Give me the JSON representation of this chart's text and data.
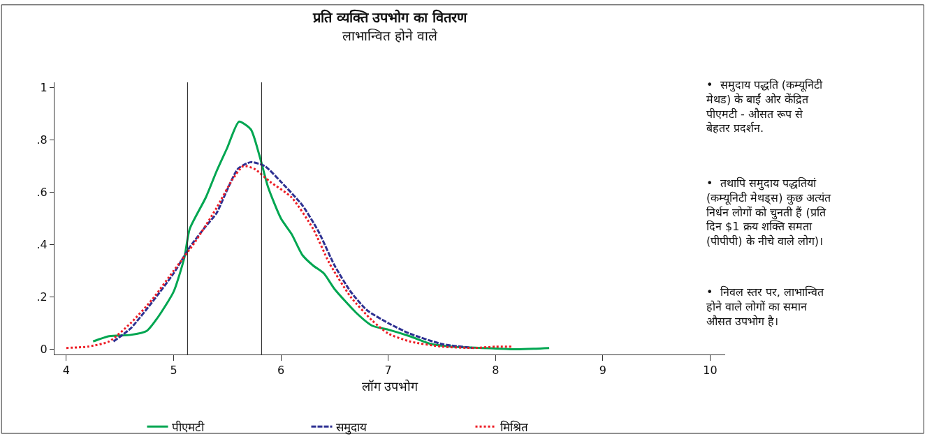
{
  "chart_data": {
    "type": "line",
    "title": "प्रति व्यक्ति उपभोग का वितरण",
    "subtitle": "लाभान्वित होने वाले",
    "xlabel": "लॉग उपभोग",
    "xlim": [
      3.89,
      10.14
    ],
    "xticks": [
      4,
      5,
      6,
      7,
      8,
      9,
      10
    ],
    "ylim": [
      -0.02,
      1.02
    ],
    "yticks": [
      0,
      {
        "value": 0.2,
        "label": ".2"
      },
      {
        "value": 0.4,
        "label": ".4"
      },
      {
        "value": 0.6,
        "label": ".6"
      },
      {
        "value": 0.8,
        "label": ".8"
      },
      1
    ],
    "grid": false,
    "legend": "bottom",
    "ref_lines": [
      {
        "axis": "x",
        "value": 5.13,
        "color": "#333333"
      },
      {
        "axis": "x",
        "value": 5.82,
        "color": "#333333"
      }
    ],
    "series": [
      {
        "name": "पीएमटी",
        "color": "#00a651",
        "line_style": "solid",
        "x": [
          4.25,
          4.4,
          4.6,
          4.75,
          4.85,
          5.0,
          5.1,
          5.15,
          5.3,
          5.4,
          5.5,
          5.61,
          5.72,
          5.8,
          5.88,
          6.0,
          6.1,
          6.2,
          6.3,
          6.4,
          6.5,
          6.7,
          6.85,
          7.0,
          7.2,
          7.4,
          7.6,
          8.0,
          8.2,
          8.5
        ],
        "values": [
          0.03,
          0.05,
          0.055,
          0.07,
          0.12,
          0.22,
          0.35,
          0.46,
          0.58,
          0.68,
          0.77,
          0.87,
          0.84,
          0.74,
          0.62,
          0.5,
          0.44,
          0.36,
          0.32,
          0.29,
          0.23,
          0.14,
          0.09,
          0.075,
          0.05,
          0.02,
          0.01,
          0.003,
          0.0,
          0.005
        ]
      },
      {
        "name": "समुदाय",
        "color": "#2e3192",
        "line_style": "dashed",
        "x": [
          4.44,
          4.6,
          4.8,
          5.0,
          5.15,
          5.3,
          5.4,
          5.5,
          5.6,
          5.72,
          5.85,
          6.0,
          6.2,
          6.35,
          6.5,
          6.65,
          6.8,
          7.0,
          7.2,
          7.5,
          7.8
        ],
        "values": [
          0.03,
          0.08,
          0.18,
          0.29,
          0.39,
          0.47,
          0.52,
          0.61,
          0.69,
          0.715,
          0.7,
          0.64,
          0.55,
          0.45,
          0.32,
          0.22,
          0.15,
          0.1,
          0.06,
          0.02,
          0.005
        ]
      },
      {
        "name": "मिश्रित",
        "color": "#ed1c24",
        "line_style": "dotted",
        "x": [
          4.0,
          4.2,
          4.4,
          4.6,
          4.8,
          5.0,
          5.2,
          5.4,
          5.55,
          5.65,
          5.75,
          5.9,
          6.1,
          6.3,
          6.45,
          6.65,
          6.85,
          7.0,
          7.2,
          7.5,
          7.8,
          8.0,
          8.15
        ],
        "values": [
          0.005,
          0.01,
          0.03,
          0.1,
          0.19,
          0.3,
          0.41,
          0.54,
          0.65,
          0.7,
          0.69,
          0.64,
          0.58,
          0.46,
          0.33,
          0.2,
          0.11,
          0.06,
          0.03,
          0.01,
          0.005,
          0.01,
          0.01
        ]
      }
    ],
    "annotations": [
      "•  समुदाय पद्धति (कम्यूनिटी\nमेथड) के बाईं ओर केंद्रित\nपीएमटी - औसत रूप से\nबेहतर प्रदर्शन.",
      "•  तथापि समुदाय पद्धतियां\n(कम्यूनिटी मेथड्स) कुछ अत्यंत\nनिर्धन लोगों को चुनती हैं (प्रति\nदिन $1 क्रय शक्ति समता\n(पीपीपी) के नीचे वाले लोग)।",
      "•  निवल स्तर पर, लाभान्वित\nहोने वाले लोगों का समान\nऔसत उपभोग है।"
    ]
  }
}
